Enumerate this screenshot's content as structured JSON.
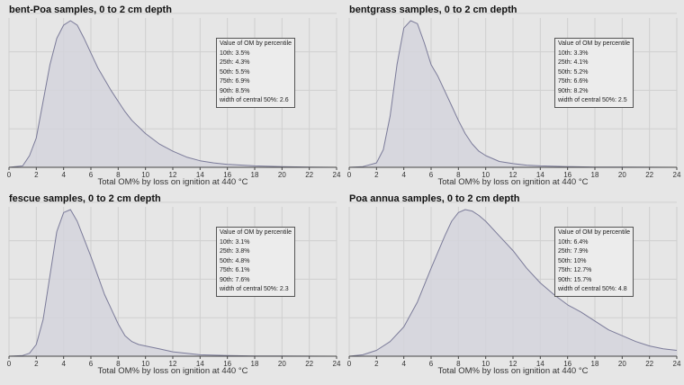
{
  "chart_data": [
    {
      "type": "area",
      "title": "bent-Poa samples, 0 to 2 cm depth",
      "xlabel": "Total OM% by loss on ignition at 440 °C",
      "ylabel": "",
      "xlim": [
        0,
        24
      ],
      "xticks": [
        "0",
        "2",
        "4",
        "6",
        "8",
        "10",
        "12",
        "14",
        "16",
        "18",
        "20",
        "22",
        "24"
      ],
      "grid": true,
      "x": [
        0,
        1,
        1.5,
        2,
        2.5,
        3,
        3.5,
        4,
        4.5,
        5,
        5.5,
        6,
        6.5,
        7,
        7.5,
        8,
        8.5,
        9,
        10,
        11,
        12,
        13,
        14,
        15,
        16,
        18,
        20,
        22,
        24
      ],
      "density": [
        0,
        0.01,
        0.08,
        0.2,
        0.45,
        0.7,
        0.88,
        0.97,
        1.0,
        0.97,
        0.88,
        0.78,
        0.68,
        0.6,
        0.52,
        0.45,
        0.38,
        0.32,
        0.23,
        0.16,
        0.11,
        0.07,
        0.045,
        0.03,
        0.02,
        0.01,
        0.005,
        0.002,
        0
      ],
      "legend": {
        "title": "Value of OM by percentile",
        "lines": [
          "10th: 3.5%",
          "25th: 4.3%",
          "50th: 5.5%",
          "75th: 6.9%",
          "90th: 8.5%",
          "width of central 50%: 2.6"
        ],
        "placement": "top-right"
      }
    },
    {
      "type": "area",
      "title": "bentgrass samples, 0 to 2 cm depth",
      "xlabel": "Total OM% by loss on ignition at 440 °C",
      "ylabel": "",
      "xlim": [
        0,
        24
      ],
      "xticks": [
        "0",
        "2",
        "4",
        "6",
        "8",
        "10",
        "12",
        "14",
        "16",
        "18",
        "20",
        "22",
        "24"
      ],
      "grid": true,
      "x": [
        0,
        1,
        2,
        2.5,
        3,
        3.5,
        4,
        4.5,
        5,
        5.5,
        6,
        6.5,
        7,
        7.5,
        8,
        8.5,
        9,
        9.5,
        10,
        11,
        12,
        13,
        14,
        16,
        18,
        20,
        24
      ],
      "density": [
        0,
        0.005,
        0.03,
        0.12,
        0.35,
        0.7,
        0.95,
        1.0,
        0.98,
        0.85,
        0.7,
        0.62,
        0.52,
        0.42,
        0.32,
        0.23,
        0.16,
        0.11,
        0.08,
        0.04,
        0.025,
        0.015,
        0.01,
        0.005,
        0.002,
        0.001,
        0
      ],
      "legend": {
        "title": "Value of OM by percentile",
        "lines": [
          "10th: 3.3%",
          "25th: 4.1%",
          "50th: 5.2%",
          "75th: 6.6%",
          "90th: 8.2%",
          "width of central 50%: 2.5"
        ],
        "placement": "top-right"
      }
    },
    {
      "type": "area",
      "title": "fescue samples, 0 to 2 cm depth",
      "xlabel": "Total OM% by loss on ignition at 440 °C",
      "ylabel": "",
      "xlim": [
        0,
        24
      ],
      "xticks": [
        "0",
        "2",
        "4",
        "6",
        "8",
        "10",
        "12",
        "14",
        "16",
        "18",
        "20",
        "22",
        "24"
      ],
      "grid": true,
      "x": [
        0,
        1,
        1.5,
        2,
        2.5,
        3,
        3.5,
        4,
        4.5,
        5,
        5.5,
        6,
        6.5,
        7,
        7.5,
        8,
        8.5,
        9,
        9.5,
        10,
        11,
        12,
        13,
        14,
        16,
        18,
        20,
        24
      ],
      "density": [
        0,
        0.005,
        0.02,
        0.08,
        0.25,
        0.55,
        0.85,
        0.98,
        1.0,
        0.92,
        0.8,
        0.68,
        0.55,
        0.42,
        0.32,
        0.22,
        0.14,
        0.1,
        0.08,
        0.07,
        0.05,
        0.03,
        0.02,
        0.01,
        0.005,
        0.002,
        0.001,
        0
      ],
      "legend": {
        "title": "Value of OM by percentile",
        "lines": [
          "10th: 3.1%",
          "25th: 3.8%",
          "50th: 4.8%",
          "75th: 6.1%",
          "90th: 7.6%",
          "width of central 50%: 2.3"
        ],
        "placement": "top-right"
      }
    },
    {
      "type": "area",
      "title": "Poa annua samples, 0 to 2 cm depth",
      "xlabel": "Total OM% by loss on ignition at 440 °C",
      "ylabel": "",
      "xlim": [
        0,
        24
      ],
      "xticks": [
        "0",
        "2",
        "4",
        "6",
        "8",
        "10",
        "12",
        "14",
        "16",
        "18",
        "20",
        "22",
        "24"
      ],
      "grid": true,
      "x": [
        0,
        1,
        2,
        3,
        4,
        5,
        6,
        7,
        7.5,
        8,
        8.5,
        9,
        9.5,
        10,
        11,
        12,
        13,
        14,
        15,
        16,
        17,
        18,
        19,
        20,
        21,
        22,
        23,
        24
      ],
      "density": [
        0,
        0.01,
        0.04,
        0.1,
        0.2,
        0.37,
        0.6,
        0.82,
        0.92,
        0.98,
        1.0,
        0.99,
        0.96,
        0.92,
        0.82,
        0.72,
        0.6,
        0.5,
        0.42,
        0.35,
        0.3,
        0.24,
        0.18,
        0.14,
        0.1,
        0.07,
        0.05,
        0.04
      ],
      "legend": {
        "title": "Value of OM by percentile",
        "lines": [
          "10th: 6.4%",
          "25th: 7.9%",
          "50th: 10%",
          "75th: 12.7%",
          "90th: 15.7%",
          "width of central 50%: 4.8"
        ],
        "placement": "top-right"
      }
    }
  ],
  "colors": {
    "fill": "#d3d4dc",
    "line": "#7b7b99",
    "grid": "#cfcfcf",
    "axis": "#444444"
  }
}
